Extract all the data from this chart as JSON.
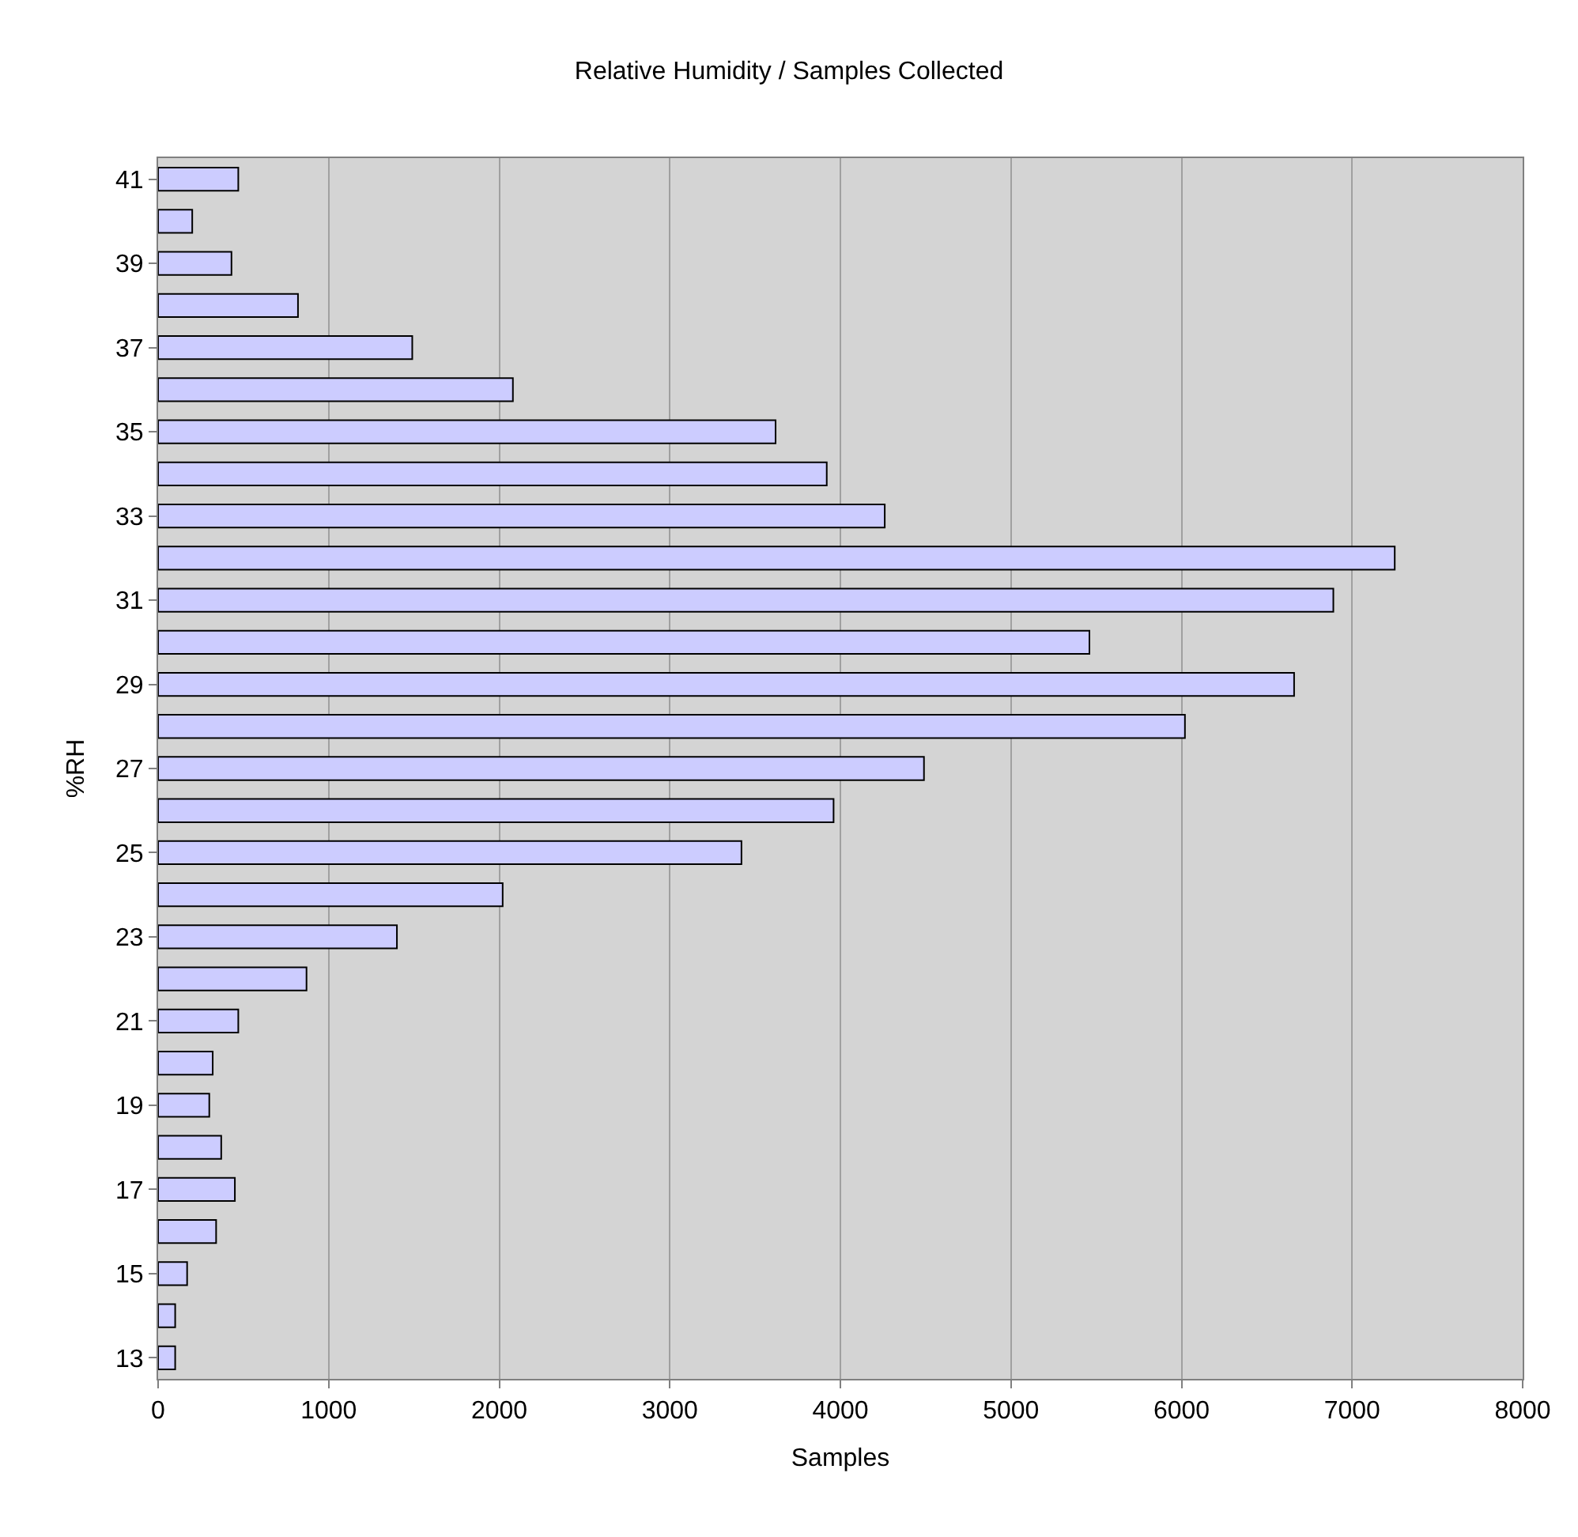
{
  "chart_data": {
    "type": "bar",
    "orientation": "horizontal",
    "title": "Relative Humidity / Samples Collected",
    "xlabel": "Samples",
    "ylabel": "%RH",
    "categories": [
      "41",
      null,
      "39",
      null,
      "37",
      null,
      "35",
      null,
      "33",
      null,
      "31",
      null,
      "29",
      null,
      "27",
      null,
      "25",
      null,
      "23",
      null,
      "21",
      null,
      "19",
      null,
      "17",
      null,
      "15",
      null,
      "13"
    ],
    "values": [
      470,
      200,
      430,
      820,
      1490,
      2080,
      3620,
      3920,
      4260,
      7250,
      6890,
      5460,
      6660,
      6020,
      4490,
      3960,
      3420,
      2020,
      1400,
      870,
      470,
      320,
      300,
      370,
      450,
      340,
      170,
      100,
      100
    ],
    "color": "#ccccff",
    "xlim": [
      0,
      8000
    ],
    "xticks": [
      0,
      1000,
      2000,
      3000,
      4000,
      5000,
      6000,
      7000,
      8000
    ],
    "grid": "x"
  }
}
